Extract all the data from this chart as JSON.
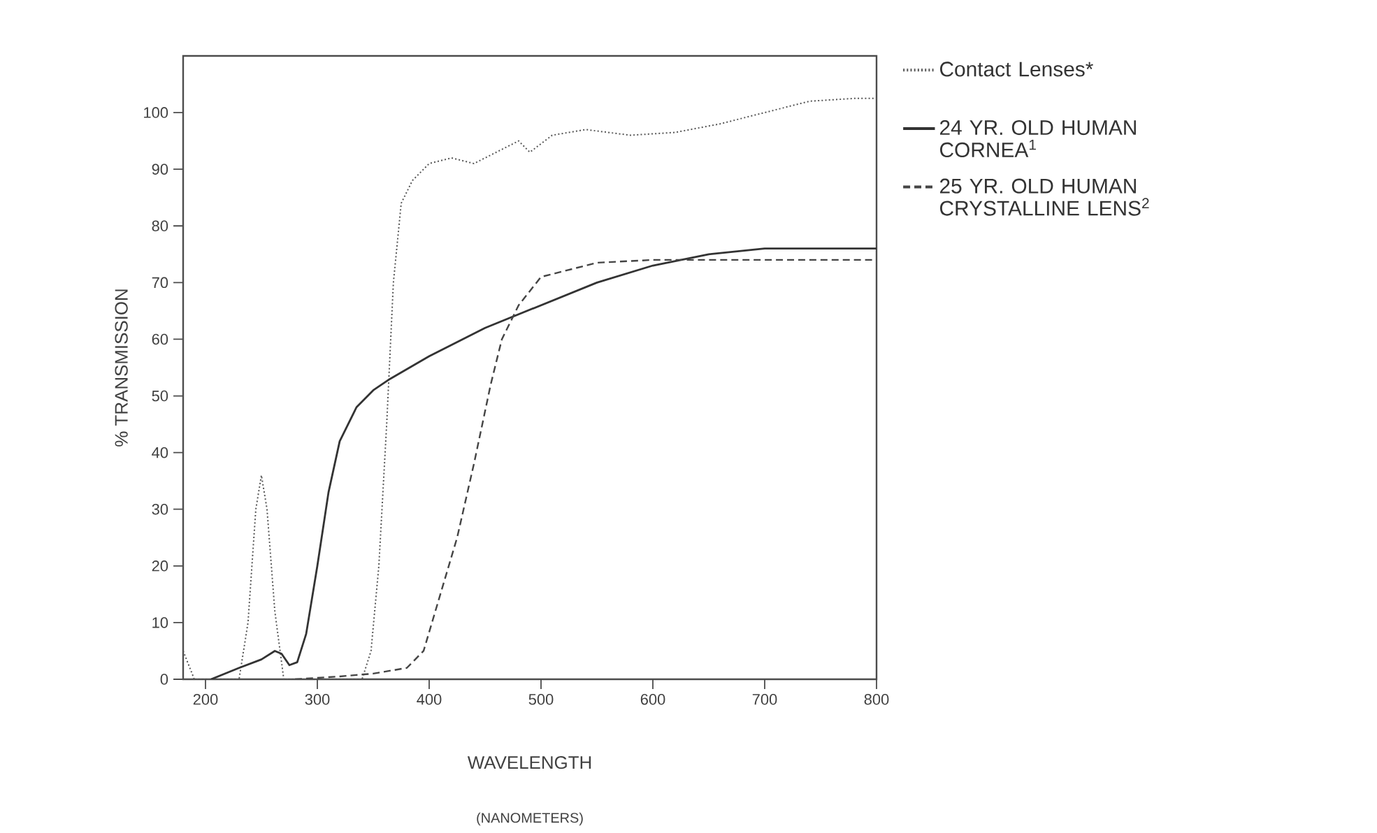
{
  "chart_data": {
    "type": "line",
    "xlabel": "WAVELENGTH",
    "ylabel": "% TRANSMISSION",
    "annotations": [
      "(NANOMETERS)"
    ],
    "xlim": [
      180,
      800
    ],
    "ylim": [
      0,
      110
    ],
    "xticks": [
      200,
      300,
      400,
      500,
      600,
      700,
      800
    ],
    "yticks": [
      0,
      10,
      20,
      30,
      40,
      50,
      60,
      70,
      80,
      90,
      100
    ],
    "legend": "right",
    "grid": false,
    "series": [
      {
        "name": "Contact Lenses*",
        "color": "#555555",
        "line_style": "dotted",
        "x": [
          180,
          190,
          230,
          238,
          245,
          250,
          255,
          262,
          270,
          340,
          348,
          355,
          362,
          368,
          375,
          385,
          400,
          420,
          440,
          460,
          480,
          490,
          510,
          540,
          580,
          620,
          660,
          700,
          740,
          780,
          800
        ],
        "values": [
          5,
          0,
          0,
          10,
          30,
          36,
          30,
          12,
          0,
          0,
          5,
          20,
          45,
          70,
          84,
          88,
          91,
          92,
          91,
          93,
          95,
          93,
          96,
          97,
          96,
          96.5,
          98,
          100,
          102,
          102.5,
          102.5
        ]
      },
      {
        "name": "24 YR. OLD HUMAN CORNEA$^{1}$",
        "color": "#333333",
        "line_style": "solid",
        "x": [
          205,
          230,
          250,
          262,
          268,
          275,
          282,
          290,
          300,
          310,
          320,
          335,
          350,
          365,
          400,
          450,
          500,
          550,
          600,
          650,
          700,
          750,
          800
        ],
        "values": [
          0,
          2,
          3.5,
          5,
          4.5,
          2.5,
          3,
          8,
          20,
          33,
          42,
          48,
          51,
          53,
          57,
          62,
          66,
          70,
          73,
          75,
          76,
          76,
          76
        ]
      },
      {
        "name": "25 YR. OLD HUMAN CRYSTALLINE LENS$^{2}$",
        "color": "#444444",
        "line_style": "dashed",
        "x": [
          280,
          320,
          350,
          380,
          395,
          410,
          425,
          440,
          455,
          465,
          480,
          500,
          550,
          600,
          700,
          800
        ],
        "values": [
          0,
          0.5,
          1,
          2,
          5,
          15,
          25,
          38,
          52,
          60,
          66,
          71,
          73.5,
          74,
          74,
          74
        ]
      }
    ]
  }
}
